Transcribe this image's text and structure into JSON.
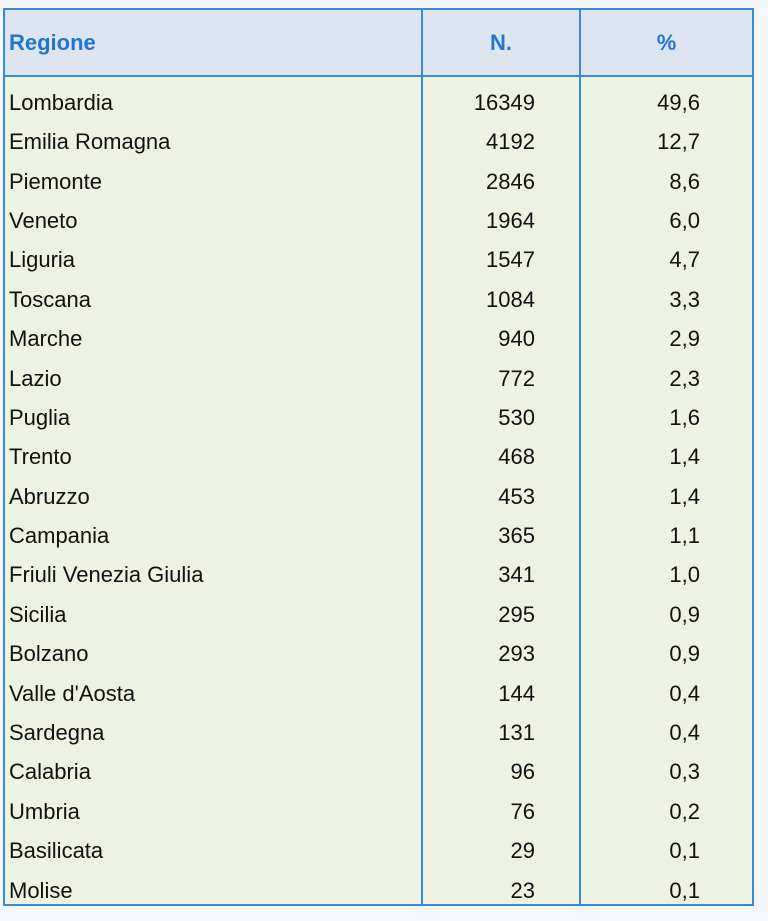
{
  "table": {
    "headers": {
      "region": "Regione",
      "count": "N.",
      "percent": "%"
    },
    "rows": [
      {
        "region": "Lombardia",
        "count": "16349",
        "percent": "49,6"
      },
      {
        "region": "Emilia Romagna",
        "count": "4192",
        "percent": "12,7"
      },
      {
        "region": "Piemonte",
        "count": "2846",
        "percent": "8,6"
      },
      {
        "region": "Veneto",
        "count": "1964",
        "percent": "6,0"
      },
      {
        "region": "Liguria",
        "count": "1547",
        "percent": "4,7"
      },
      {
        "region": "Toscana",
        "count": "1084",
        "percent": "3,3"
      },
      {
        "region": "Marche",
        "count": "940",
        "percent": "2,9"
      },
      {
        "region": "Lazio",
        "count": "772",
        "percent": "2,3"
      },
      {
        "region": "Puglia",
        "count": "530",
        "percent": "1,6"
      },
      {
        "region": "Trento",
        "count": "468",
        "percent": "1,4"
      },
      {
        "region": "Abruzzo",
        "count": "453",
        "percent": "1,4"
      },
      {
        "region": "Campania",
        "count": "365",
        "percent": "1,1"
      },
      {
        "region": "Friuli Venezia Giulia",
        "count": "341",
        "percent": "1,0"
      },
      {
        "region": "Sicilia",
        "count": "295",
        "percent": "0,9"
      },
      {
        "region": "Bolzano",
        "count": "293",
        "percent": "0,9"
      },
      {
        "region": "Valle d'Aosta",
        "count": "144",
        "percent": "0,4"
      },
      {
        "region": "Sardegna",
        "count": "131",
        "percent": "0,4"
      },
      {
        "region": "Calabria",
        "count": "96",
        "percent": "0,3"
      },
      {
        "region": "Umbria",
        "count": "76",
        "percent": "0,2"
      },
      {
        "region": "Basilicata",
        "count": "29",
        "percent": "0,1"
      },
      {
        "region": "Molise",
        "count": "23",
        "percent": "0,1"
      }
    ]
  }
}
